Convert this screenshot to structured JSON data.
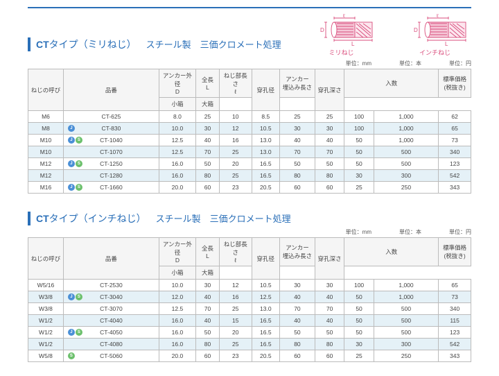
{
  "colors": {
    "accent": "#2a6fb8",
    "diagram": "#d94b7b",
    "rowHighlight": "#e5f1f7",
    "border": "#bbbbbb",
    "headerBg": "#f5f5f5",
    "text": "#444444",
    "iconJ": "#4a8fd6",
    "iconS": "#6cc06c"
  },
  "diagrams": {
    "left_label": "ミリねじ",
    "right_label": "インチねじ",
    "dim_D": "D",
    "dim_L": "L",
    "dim_ell": "ℓ"
  },
  "units": {
    "mm": "単位：mm",
    "hon": "単位：本",
    "yen": "単位：円"
  },
  "headers": {
    "yobi": "ねじの呼び",
    "hinban": "品番",
    "D": "アンカー外径",
    "D_sub": "D",
    "L": "全長",
    "L_sub": "L",
    "ell": "ねじ部長さ",
    "ell_sub": "ℓ",
    "hole": "穿孔径",
    "embed": "アンカー",
    "embed_sub": "埋込み長さ",
    "depth": "穿孔深さ",
    "qty": "入数",
    "sbox": "小箱",
    "lbox": "大箱",
    "price": "標準価格",
    "price_sub": "(税抜き)"
  },
  "section1": {
    "title_ct": "CT",
    "title_type": "タイプ（ミリねじ）",
    "subtitle": "スチール製　三価クロメート処理",
    "rows": [
      {
        "hl": false,
        "icons": [],
        "yobi": "M6",
        "hinban": "CT-625",
        "D": "8.0",
        "L": "25",
        "ell": "10",
        "hole": "8.5",
        "embed": "25",
        "depth": "25",
        "sbox": "100",
        "lbox": "1,000",
        "price": "62"
      },
      {
        "hl": true,
        "icons": [
          "J"
        ],
        "yobi": "M8",
        "hinban": "CT-830",
        "D": "10.0",
        "L": "30",
        "ell": "12",
        "hole": "10.5",
        "embed": "30",
        "depth": "30",
        "sbox": "100",
        "lbox": "1,000",
        "price": "65"
      },
      {
        "hl": false,
        "icons": [
          "J",
          "S"
        ],
        "yobi": "M10",
        "hinban": "CT-1040",
        "D": "12.5",
        "L": "40",
        "ell": "16",
        "hole": "13.0",
        "embed": "40",
        "depth": "40",
        "sbox": "50",
        "lbox": "1,000",
        "price": "73"
      },
      {
        "hl": true,
        "icons": [],
        "yobi": "M10",
        "hinban": "CT-1070",
        "D": "12.5",
        "L": "70",
        "ell": "25",
        "hole": "13.0",
        "embed": "70",
        "depth": "70",
        "sbox": "50",
        "lbox": "500",
        "price": "340"
      },
      {
        "hl": false,
        "icons": [
          "J",
          "S"
        ],
        "yobi": "M12",
        "hinban": "CT-1250",
        "D": "16.0",
        "L": "50",
        "ell": "20",
        "hole": "16.5",
        "embed": "50",
        "depth": "50",
        "sbox": "50",
        "lbox": "500",
        "price": "123"
      },
      {
        "hl": true,
        "icons": [],
        "yobi": "M12",
        "hinban": "CT-1280",
        "D": "16.0",
        "L": "80",
        "ell": "25",
        "hole": "16.5",
        "embed": "80",
        "depth": "80",
        "sbox": "30",
        "lbox": "300",
        "price": "542"
      },
      {
        "hl": false,
        "icons": [
          "J",
          "S"
        ],
        "yobi": "M16",
        "hinban": "CT-1660",
        "D": "20.0",
        "L": "60",
        "ell": "23",
        "hole": "20.5",
        "embed": "60",
        "depth": "60",
        "sbox": "25",
        "lbox": "250",
        "price": "343"
      }
    ]
  },
  "section2": {
    "title_ct": "CT",
    "title_type": "タイプ（インチねじ）",
    "subtitle": "スチール製　三価クロメート処理",
    "rows": [
      {
        "hl": false,
        "icons": [],
        "yobi": "W5/16",
        "hinban": "CT-2530",
        "D": "10.0",
        "L": "30",
        "ell": "12",
        "hole": "10.5",
        "embed": "30",
        "depth": "30",
        "sbox": "100",
        "lbox": "1,000",
        "price": "65"
      },
      {
        "hl": true,
        "icons": [
          "J",
          "S"
        ],
        "yobi": "W3/8",
        "hinban": "CT-3040",
        "D": "12.0",
        "L": "40",
        "ell": "16",
        "hole": "12.5",
        "embed": "40",
        "depth": "40",
        "sbox": "50",
        "lbox": "1,000",
        "price": "73"
      },
      {
        "hl": false,
        "icons": [],
        "yobi": "W3/8",
        "hinban": "CT-3070",
        "D": "12.5",
        "L": "70",
        "ell": "25",
        "hole": "13.0",
        "embed": "70",
        "depth": "70",
        "sbox": "50",
        "lbox": "500",
        "price": "340"
      },
      {
        "hl": true,
        "icons": [],
        "yobi": "W1/2",
        "hinban": "CT-4040",
        "D": "16.0",
        "L": "40",
        "ell": "15",
        "hole": "16.5",
        "embed": "40",
        "depth": "40",
        "sbox": "50",
        "lbox": "500",
        "price": "115"
      },
      {
        "hl": false,
        "icons": [
          "J",
          "S"
        ],
        "yobi": "W1/2",
        "hinban": "CT-4050",
        "D": "16.0",
        "L": "50",
        "ell": "20",
        "hole": "16.5",
        "embed": "50",
        "depth": "50",
        "sbox": "50",
        "lbox": "500",
        "price": "123"
      },
      {
        "hl": true,
        "icons": [],
        "yobi": "W1/2",
        "hinban": "CT-4080",
        "D": "16.0",
        "L": "80",
        "ell": "25",
        "hole": "16.5",
        "embed": "80",
        "depth": "80",
        "sbox": "30",
        "lbox": "300",
        "price": "542"
      },
      {
        "hl": false,
        "icons": [
          "S"
        ],
        "yobi": "W5/8",
        "hinban": "CT-5060",
        "D": "20.0",
        "L": "60",
        "ell": "23",
        "hole": "20.5",
        "embed": "60",
        "depth": "60",
        "sbox": "25",
        "lbox": "250",
        "price": "343"
      }
    ]
  }
}
